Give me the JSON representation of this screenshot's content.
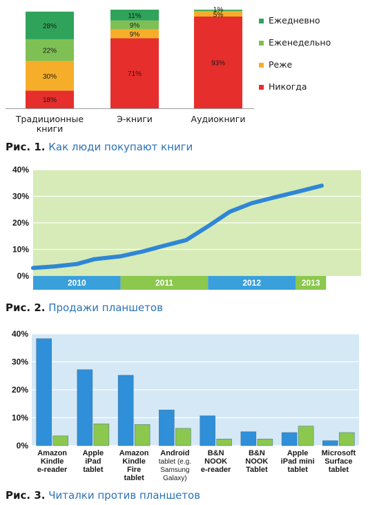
{
  "chart_data": [
    {
      "type": "bar",
      "stacked": true,
      "title": "",
      "categories": [
        "Традиционные книги",
        "Э-книги",
        "Аудиокниги"
      ],
      "category_lines": [
        [
          "Традиционные",
          "книги"
        ],
        [
          "Э-книги"
        ],
        [
          "Аудиокниги"
        ]
      ],
      "series": [
        {
          "name": "Никогда",
          "color": "#e62e2c",
          "values": [
            18,
            71,
            93
          ]
        },
        {
          "name": "Реже",
          "color": "#f6ae2a",
          "values": [
            30,
            9,
            5
          ]
        },
        {
          "name": "Еженедельно",
          "color": "#7fc055",
          "values": [
            22,
            9,
            1
          ]
        },
        {
          "name": "Ежедневно",
          "color": "#2fa35a",
          "values": [
            28,
            11,
            1
          ]
        }
      ],
      "value_labels": [
        [
          "18%",
          "71%",
          "93%"
        ],
        [
          "30%",
          "9%",
          "5%"
        ],
        [
          "22%",
          "9%",
          ""
        ],
        [
          "28%",
          "11%",
          "1%"
        ]
      ],
      "legend_order": [
        "Ежедневно",
        "Еженедельно",
        "Реже",
        "Никогда"
      ],
      "legend_position": "right",
      "ylim": [
        0,
        100
      ],
      "caption_number": "Рис. 1.",
      "caption_text": "Как люди покупают книги"
    },
    {
      "type": "line",
      "title": "",
      "xlim": [
        2010.0,
        2013.75
      ],
      "ylim": [
        0,
        40
      ],
      "y_ticks": [
        0,
        10,
        20,
        30,
        40
      ],
      "y_tick_labels": [
        "0%",
        "10%",
        "20%",
        "30%",
        "40%"
      ],
      "year_bands": [
        {
          "label": "2010",
          "start": 2010.0,
          "end": 2011.0,
          "color": "#3aa0dc"
        },
        {
          "label": "2011",
          "start": 2011.0,
          "end": 2012.0,
          "color": "#8cc74e"
        },
        {
          "label": "2012",
          "start": 2012.0,
          "end": 2013.0,
          "color": "#3aa0dc"
        },
        {
          "label": "2013",
          "start": 2013.0,
          "end": 2013.35,
          "color": "#8cc74e"
        }
      ],
      "series": [
        {
          "name": "",
          "color": "#2f86d6",
          "x": [
            2010.0,
            2010.25,
            2010.5,
            2010.7,
            2011.0,
            2011.25,
            2011.5,
            2011.75,
            2012.0,
            2012.25,
            2012.5,
            2012.75,
            2013.0,
            2013.3
          ],
          "y": [
            3,
            3.6,
            4.5,
            6.3,
            7.4,
            9.2,
            11.4,
            13.5,
            18.7,
            24.2,
            27.4,
            29.5,
            31.5,
            34
          ]
        }
      ],
      "background_color": "#d6ebb7",
      "caption_number": "Рис. 2.",
      "caption_text": "Продажи планшетов"
    },
    {
      "type": "bar",
      "title": "",
      "categories": [
        "Amazon Kindle e-reader",
        "Apple iPad tablet",
        "Amazon Kindle Fire tablet",
        "Android tablet (e.g. Samsung Galaxy)",
        "B&N NOOK e-reader",
        "B&N NOOK Tablet",
        "Apple iPad mini tablet",
        "Microsoft Surface tablet"
      ],
      "category_lines": [
        [
          "Amazon",
          "Kindle",
          "e-reader"
        ],
        [
          "Apple",
          "iPad",
          "tablet"
        ],
        [
          "Amazon",
          "Kindle",
          "Fire",
          "tablet"
        ],
        [
          "Android",
          "tablet (e.g.",
          "Samsung",
          "Galaxy)"
        ],
        [
          "B&N",
          "NOOK",
          "e-reader"
        ],
        [
          "B&N",
          "NOOK",
          "Tablet"
        ],
        [
          "Apple",
          "iPad mini",
          "tablet"
        ],
        [
          "Microsoft",
          "Surface",
          "tablet"
        ]
      ],
      "series": [
        {
          "name": "",
          "color": "#2f8fd8",
          "values": [
            38.3,
            27.2,
            25.2,
            12.8,
            10.7,
            5.0,
            4.7,
            1.8
          ]
        },
        {
          "name": "",
          "color": "#8cc74e",
          "values": [
            3.5,
            7.8,
            7.6,
            6.2,
            2.4,
            2.4,
            7.0,
            4.7
          ]
        }
      ],
      "ylim": [
        0,
        40
      ],
      "y_ticks": [
        0,
        10,
        20,
        30,
        40
      ],
      "y_tick_labels": [
        "0%",
        "10%",
        "20%",
        "30%",
        "40%"
      ],
      "background_color": "#d5e8f5",
      "caption_number": "Рис. 3.",
      "caption_text": "Читалки против планшетов"
    }
  ]
}
